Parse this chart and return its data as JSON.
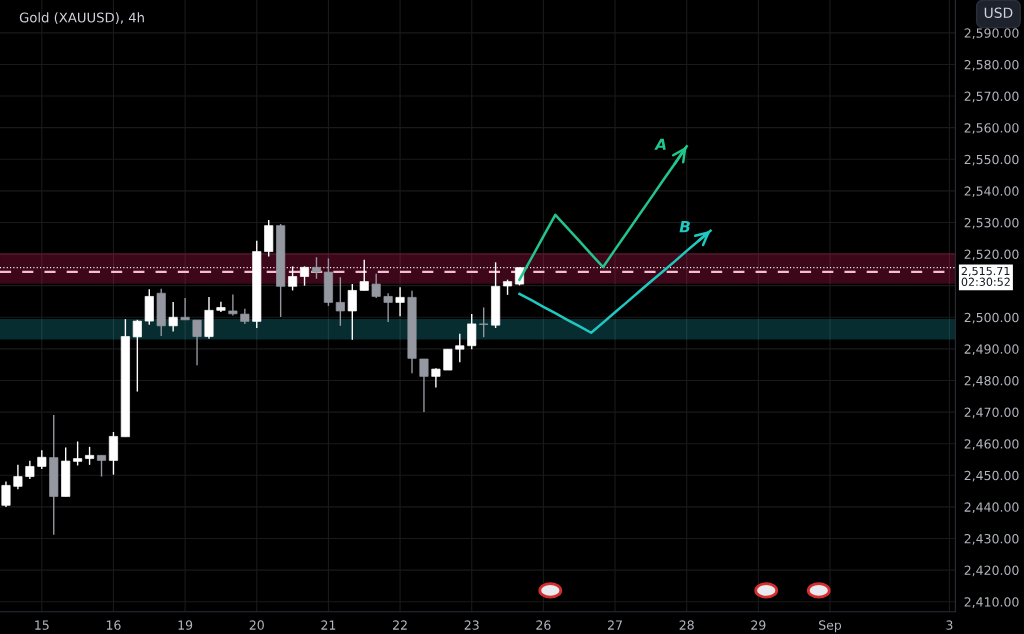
{
  "chart_data": {
    "type": "candlestick",
    "title": "Gold (XAUUSD), 4h",
    "categories": [
      null,
      null,
      null,
      "15",
      null,
      null,
      null,
      null,
      null,
      "16",
      null,
      null,
      null,
      null,
      null,
      "19",
      null,
      null,
      null,
      null,
      null,
      "20",
      null,
      null,
      null,
      null,
      null,
      "21",
      null,
      null,
      null,
      null,
      null,
      "22",
      null,
      null,
      null,
      null,
      null,
      "23",
      null,
      null,
      null,
      null,
      null,
      "26",
      null,
      null,
      null,
      null,
      null,
      "27",
      null,
      null,
      null,
      null,
      null,
      "28",
      null,
      null,
      null,
      null,
      null,
      "29",
      null,
      null,
      null,
      null,
      null,
      "Sep",
      null,
      null,
      null,
      null,
      null,
      null,
      null,
      null,
      null,
      "3"
    ],
    "ylim": [
      2406.8,
      2600.4
    ],
    "yticks": [
      {
        "value": 2410,
        "label": "2,410.00"
      },
      {
        "value": 2420,
        "label": "2,420.00"
      },
      {
        "value": 2430,
        "label": "2,430.00"
      },
      {
        "value": 2440,
        "label": "2,440.00"
      },
      {
        "value": 2450,
        "label": "2,450.00"
      },
      {
        "value": 2460,
        "label": "2,460.00"
      },
      {
        "value": 2470,
        "label": "2,470.00"
      },
      {
        "value": 2480,
        "label": "2,480.00"
      },
      {
        "value": 2490,
        "label": "2,490.00"
      },
      {
        "value": 2500,
        "label": "2,500.00"
      },
      {
        "value": 2510,
        "label": null
      },
      {
        "value": 2520,
        "label": "2,520.00"
      },
      {
        "value": 2530,
        "label": "2,530.00"
      },
      {
        "value": 2540,
        "label": "2,540.00"
      },
      {
        "value": 2550,
        "label": "2,550.00"
      },
      {
        "value": 2560,
        "label": "2,560.00"
      },
      {
        "value": 2570,
        "label": "2,570.00"
      },
      {
        "value": 2580,
        "label": "2,580.00"
      },
      {
        "value": 2590,
        "label": "2,590.00"
      }
    ],
    "grid": true,
    "series": [
      {
        "ohlc": [
          [
            2440.5,
            2448,
            2440,
            2446.8
          ],
          [
            2446.5,
            2453.3,
            2445.6,
            2449.6
          ],
          [
            2449.6,
            2454.6,
            2448.8,
            2452.8
          ],
          [
            2452.8,
            2457.9,
            2452,
            2455.7
          ],
          [
            2455.6,
            2469.1,
            2431.2,
            2443.3
          ],
          [
            2443.3,
            2458.8,
            2443.3,
            2454.5
          ],
          [
            2454.4,
            2460.7,
            2453.1,
            2455.3
          ],
          [
            2455.3,
            2459,
            2453.3,
            2456.3
          ],
          [
            2456.3,
            2456.3,
            2449.6,
            2454.7
          ],
          [
            2454.7,
            2463.7,
            2450.2,
            2462.3
          ],
          [
            2462.2,
            2499.4,
            2462.2,
            2493.9
          ],
          [
            2493.8,
            2499.2,
            2476.5,
            2498.8
          ],
          [
            2498.8,
            2508.9,
            2497.6,
            2506.6
          ],
          [
            2507.6,
            2509,
            2494.1,
            2497.3
          ],
          [
            2497.3,
            2504.8,
            2495.5,
            2500
          ],
          [
            2500,
            2506.1,
            2499.2,
            2499.2
          ],
          [
            2499.1,
            2499.1,
            2484.8,
            2493.9
          ],
          [
            2493.9,
            2506.4,
            2493.2,
            2502.2
          ],
          [
            2502.2,
            2504.9,
            2501.7,
            2503.1
          ],
          [
            2502,
            2507.2,
            2500.6,
            2501.1
          ],
          [
            2501,
            2502.7,
            2497.9,
            2498.7
          ],
          [
            2498.7,
            2524.2,
            2496.6,
            2520.8
          ],
          [
            2520.8,
            2530.8,
            2519.2,
            2529
          ],
          [
            2529,
            2529.5,
            2500.1,
            2509.8
          ],
          [
            2509.8,
            2516.1,
            2508.5,
            2512.9
          ],
          [
            2512.9,
            2516.1,
            2510,
            2515.8
          ],
          [
            2515.8,
            2519,
            2512.2,
            2514.3
          ],
          [
            2514.3,
            2518.6,
            2503.6,
            2504.7
          ],
          [
            2504.7,
            2512.7,
            2497.3,
            2502
          ],
          [
            2502,
            2510.5,
            2492.9,
            2508.5
          ],
          [
            2508.5,
            2518.2,
            2508.5,
            2511.3
          ],
          [
            2510.5,
            2513.8,
            2506.1,
            2506.6
          ],
          [
            2506.6,
            2507.6,
            2498.5,
            2504.7
          ],
          [
            2504.7,
            2509.5,
            2500.3,
            2506.3
          ],
          [
            2506.3,
            2508.4,
            2482.3,
            2487
          ],
          [
            2486.8,
            2486.8,
            2470,
            2481.3
          ],
          [
            2481.3,
            2483.9,
            2477.8,
            2483.6
          ],
          [
            2483.3,
            2489.9,
            2483.3,
            2489.9
          ],
          [
            2489.9,
            2494.8,
            2485.8,
            2491
          ],
          [
            2491,
            2501,
            2489.9,
            2497.9
          ],
          [
            2497.9,
            2503.1,
            2493.7,
            2497.7
          ],
          [
            2497.5,
            2517.4,
            2496.6,
            2509.8
          ],
          [
            2509.9,
            2511.9,
            2507.1,
            2511.3
          ],
          [
            2510.5,
            2515.8,
            2510.1,
            2515.7
          ],
          null,
          null,
          null,
          null,
          null,
          null,
          null,
          null,
          null,
          null,
          null,
          null,
          null,
          null,
          null,
          null,
          null,
          null,
          null,
          null,
          null,
          null,
          null,
          null,
          null,
          null,
          null,
          null,
          null,
          null,
          null,
          null,
          null,
          null,
          null,
          null
        ],
        "colors": [
          "#ffffff",
          "#ffffff",
          "#ffffff",
          "#ffffff",
          "#9598a1",
          "#ffffff",
          "#ffffff",
          "#ffffff",
          "#9598a1",
          "#ffffff",
          "#ffffff",
          "#ffffff",
          "#ffffff",
          "#9598a1",
          "#ffffff",
          "#9598a1",
          "#9598a1",
          "#ffffff",
          "#ffffff",
          "#9598a1",
          "#9598a1",
          "#ffffff",
          "#ffffff",
          "#9598a1",
          "#ffffff",
          "#ffffff",
          "#9598a1",
          "#9598a1",
          "#9598a1",
          "#ffffff",
          "#ffffff",
          "#9598a1",
          "#9598a1",
          "#ffffff",
          "#9598a1",
          "#9598a1",
          "#ffffff",
          "#ffffff",
          "#ffffff",
          "#ffffff",
          "#9598a1",
          "#ffffff",
          "#ffffff",
          "#ffffff",
          null,
          null,
          null,
          null,
          null,
          null,
          null,
          null,
          null,
          null,
          null,
          null,
          null,
          null,
          null,
          null,
          null,
          null,
          null,
          null,
          null,
          null,
          null,
          null,
          null,
          null,
          null,
          null,
          null,
          null,
          null,
          null,
          null,
          null,
          null,
          null
        ]
      },
      {
        "type": "line",
        "color": "#22c58b",
        "values": [
          null,
          null,
          null,
          null,
          null,
          null,
          null,
          null,
          null,
          null,
          null,
          null,
          null,
          null,
          null,
          null,
          null,
          null,
          null,
          null,
          null,
          null,
          null,
          null,
          null,
          null,
          null,
          null,
          null,
          null,
          null,
          null,
          null,
          null,
          null,
          null,
          null,
          null,
          null,
          null,
          null,
          null,
          null,
          2511.9,
          2518.7,
          2525.6,
          2532.4,
          2528.3,
          2524.2,
          2520.0,
          2515.9,
          2521.4,
          2526.8,
          2532.3,
          2537.7,
          2543.2,
          2548.6,
          2554.1,
          null,
          null,
          null,
          null,
          null,
          null,
          null,
          null,
          null,
          null,
          null,
          null,
          null,
          null,
          null,
          null,
          null,
          null,
          null,
          null,
          null,
          null
        ]
      },
      {
        "type": "line",
        "color": "#1fc8c0",
        "values": [
          null,
          null,
          null,
          null,
          null,
          null,
          null,
          null,
          null,
          null,
          null,
          null,
          null,
          null,
          null,
          null,
          null,
          null,
          null,
          null,
          null,
          null,
          null,
          null,
          null,
          null,
          null,
          null,
          null,
          null,
          null,
          null,
          null,
          null,
          null,
          null,
          null,
          null,
          null,
          null,
          null,
          null,
          null,
          2507.4,
          2505.4,
          2503.3,
          2501.3,
          2499.2,
          2497.2,
          2495.1,
          2498.3,
          2501.6,
          2504.8,
          2508.1,
          2511.3,
          2514.5,
          2517.7,
          2521.0,
          2524.2,
          2527.4,
          null,
          null,
          null,
          null,
          null,
          null,
          null,
          null,
          null,
          null,
          null,
          null,
          null,
          null,
          null,
          null,
          null,
          null,
          null,
          null
        ]
      }
    ],
    "bands": [
      {
        "axis": "y",
        "from": 2510.9,
        "to": 2520.1,
        "color": "#e91e63"
      },
      {
        "axis": "y",
        "from": 2493.2,
        "to": 2499.2,
        "color": "#1fb5c0"
      }
    ],
    "ref_lines": [
      {
        "axis": "y",
        "value": 2515.71,
        "label": "2,515.71\n02:30:52",
        "color": "#ffffff",
        "line_style": "dotted"
      },
      {
        "axis": "y",
        "value": 2514.4,
        "color": "#f8bbd0",
        "line_style": "dashed"
      }
    ],
    "annotations": [
      "A",
      "B",
      "USD"
    ]
  }
}
